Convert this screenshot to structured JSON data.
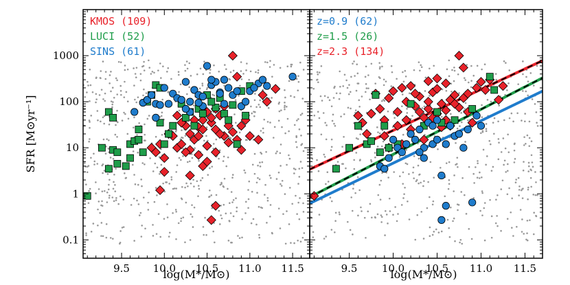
{
  "colors": {
    "kmos": "#e8222a",
    "luci": "#1f9d4a",
    "sins": "#1f7ccc",
    "background": "#999999"
  },
  "chart_data": [
    {
      "type": "scatter",
      "panel": "left",
      "xlabel": "log(M*/M⊙)",
      "ylabel": "SFR [M⊙yr⁻¹]",
      "xlim": [
        9.05,
        11.7
      ],
      "ylim": [
        0.04,
        10000
      ],
      "yscale": "log",
      "x_ticks": [
        "9.5",
        "10.0",
        "10.5",
        "11.0",
        "11.5"
      ],
      "y_ticks": [
        "0.1",
        "1",
        "10",
        "100",
        "1000"
      ],
      "legend": [
        {
          "label": "KMOS",
          "count": "(109)",
          "color": "#e8222a"
        },
        {
          "label": "LUCI",
          "count": "(52)",
          "color": "#1f9d4a"
        },
        {
          "label": "SINS",
          "count": "(61)",
          "color": "#1f7ccc"
        }
      ],
      "series": [
        {
          "name": "KMOS",
          "marker": "diamond",
          "color": "#e8222a",
          "points": [
            [
              9.85,
              10
            ],
            [
              9.9,
              8
            ],
            [
              9.95,
              12
            ],
            [
              10.0,
              6
            ],
            [
              10.05,
              20
            ],
            [
              10.1,
              18
            ],
            [
              10.15,
              10
            ],
            [
              10.2,
              12
            ],
            [
              10.25,
              30
            ],
            [
              10.3,
              9
            ],
            [
              10.35,
              15
            ],
            [
              10.4,
              28
            ],
            [
              10.45,
              40
            ],
            [
              10.5,
              60
            ],
            [
              10.55,
              35
            ],
            [
              10.6,
              25
            ],
            [
              10.65,
              50
            ],
            [
              10.7,
              18
            ],
            [
              10.75,
              13
            ],
            [
              10.8,
              22
            ],
            [
              10.85,
              15
            ],
            [
              10.9,
              30
            ],
            [
              10.95,
              40
            ],
            [
              11.0,
              18
            ],
            [
              11.1,
              15
            ],
            [
              11.15,
              140
            ],
            [
              11.2,
              100
            ],
            [
              11.3,
              190
            ],
            [
              10.8,
              1000
            ],
            [
              10.85,
              350
            ],
            [
              10.6,
              0.55
            ],
            [
              10.55,
              0.27
            ],
            [
              10.45,
              4
            ],
            [
              10.3,
              2.5
            ],
            [
              10.25,
              8
            ],
            [
              9.95,
              1.2
            ],
            [
              10.0,
              3.0
            ],
            [
              10.4,
              18
            ],
            [
              10.5,
              11
            ],
            [
              10.6,
              8
            ],
            [
              10.45,
              25
            ],
            [
              10.35,
              40
            ],
            [
              10.2,
              35
            ],
            [
              10.65,
              20
            ],
            [
              10.75,
              30
            ],
            [
              10.5,
              5
            ],
            [
              10.9,
              9
            ],
            [
              10.3,
              20
            ],
            [
              10.4,
              7
            ],
            [
              10.55,
              45
            ],
            [
              10.6,
              70
            ],
            [
              10.7,
              80
            ],
            [
              10.15,
              50
            ]
          ]
        },
        {
          "name": "LUCI",
          "marker": "square",
          "color": "#1f9d4a",
          "points": [
            [
              9.1,
              0.9
            ],
            [
              9.27,
              10
            ],
            [
              9.35,
              3.5
            ],
            [
              9.4,
              9
            ],
            [
              9.45,
              4.5
            ],
            [
              9.55,
              4.0
            ],
            [
              9.6,
              6
            ],
            [
              9.6,
              12
            ],
            [
              9.65,
              14
            ],
            [
              9.7,
              25
            ],
            [
              9.75,
              8
            ],
            [
              9.8,
              100
            ],
            [
              9.85,
              140
            ],
            [
              9.9,
              230
            ],
            [
              9.95,
              200
            ],
            [
              9.35,
              60
            ],
            [
              9.4,
              45
            ],
            [
              10.0,
              12
            ],
            [
              10.05,
              20
            ],
            [
              10.2,
              90
            ],
            [
              10.3,
              60
            ],
            [
              10.4,
              70
            ],
            [
              10.5,
              140
            ],
            [
              10.6,
              75
            ],
            [
              10.7,
              55
            ],
            [
              10.75,
              40
            ],
            [
              10.8,
              85
            ],
            [
              10.85,
              12
            ],
            [
              10.9,
              170
            ],
            [
              10.95,
              50
            ],
            [
              11.0,
              220
            ],
            [
              9.95,
              35
            ],
            [
              10.1,
              30
            ],
            [
              10.25,
              45
            ],
            [
              9.7,
              15
            ],
            [
              9.45,
              8
            ],
            [
              10.35,
              30
            ],
            [
              10.55,
              100
            ],
            [
              10.65,
              120
            ],
            [
              10.45,
              55
            ]
          ]
        },
        {
          "name": "SINS",
          "marker": "circle",
          "color": "#1f7ccc",
          "points": [
            [
              9.65,
              60
            ],
            [
              9.75,
              95
            ],
            [
              9.8,
              110
            ],
            [
              9.85,
              140
            ],
            [
              9.9,
              90
            ],
            [
              9.95,
              85
            ],
            [
              10.0,
              200
            ],
            [
              10.05,
              90
            ],
            [
              10.1,
              150
            ],
            [
              10.15,
              120
            ],
            [
              10.2,
              110
            ],
            [
              10.25,
              270
            ],
            [
              10.3,
              100
            ],
            [
              10.35,
              180
            ],
            [
              10.4,
              140
            ],
            [
              10.45,
              130
            ],
            [
              10.5,
              600
            ],
            [
              10.55,
              230
            ],
            [
              10.6,
              270
            ],
            [
              10.65,
              160
            ],
            [
              10.7,
              300
            ],
            [
              10.75,
              200
            ],
            [
              10.8,
              140
            ],
            [
              10.85,
              170
            ],
            [
              10.9,
              80
            ],
            [
              10.95,
              100
            ],
            [
              11.0,
              170
            ],
            [
              11.1,
              250
            ],
            [
              11.15,
              300
            ],
            [
              11.2,
              220
            ],
            [
              11.5,
              350
            ],
            [
              10.55,
              300
            ],
            [
              10.45,
              80
            ],
            [
              10.3,
              60
            ],
            [
              10.7,
              90
            ],
            [
              9.9,
              45
            ],
            [
              10.25,
              70
            ],
            [
              11.05,
              200
            ],
            [
              10.65,
              150
            ],
            [
              10.4,
              95
            ]
          ]
        },
        {
          "name": "background",
          "marker": "dot",
          "color": "#999999",
          "count": 700,
          "seed": 7,
          "xlim": [
            9.05,
            11.65
          ],
          "ylim": [
            0.08,
            800
          ]
        }
      ]
    },
    {
      "type": "scatter",
      "panel": "right",
      "xlabel": "log(M*/M⊙)",
      "xlim": [
        9.05,
        11.7
      ],
      "ylim": [
        0.04,
        10000
      ],
      "yscale": "log",
      "x_ticks": [
        "9.5",
        "10.0",
        "10.5",
        "11.0",
        "11.5"
      ],
      "legend": [
        {
          "label": "z=0.9",
          "count": "(62)",
          "color": "#1f7ccc"
        },
        {
          "label": "z=1.5",
          "count": "(26)",
          "color": "#1f9d4a"
        },
        {
          "label": "z=2.3",
          "count": "(134)",
          "color": "#e8222a"
        }
      ],
      "lines": [
        {
          "name": "z=2.3 relation",
          "color": "#e8222a",
          "dashed_overlay": true,
          "from": [
            9.05,
            3.4
          ],
          "to": [
            11.7,
            780
          ]
        },
        {
          "name": "z=1.5 relation",
          "color": "#1f9d4a",
          "dashed_overlay": true,
          "from": [
            9.05,
            0.85
          ],
          "to": [
            11.7,
            330
          ]
        },
        {
          "name": "z=0.9 relation",
          "color": "#1f7ccc",
          "dashed_overlay": false,
          "from": [
            9.05,
            0.62
          ],
          "to": [
            11.7,
            170
          ]
        }
      ],
      "series": [
        {
          "name": "z=2.3",
          "marker": "diamond",
          "color": "#e8222a",
          "points": [
            [
              9.1,
              0.9
            ],
            [
              9.6,
              50
            ],
            [
              9.65,
              35
            ],
            [
              9.7,
              20
            ],
            [
              9.75,
              55
            ],
            [
              9.8,
              150
            ],
            [
              9.85,
              70
            ],
            [
              9.9,
              40
            ],
            [
              9.95,
              120
            ],
            [
              10.0,
              170
            ],
            [
              10.05,
              60
            ],
            [
              10.1,
              200
            ],
            [
              10.15,
              100
            ],
            [
              10.2,
              220
            ],
            [
              10.25,
              80
            ],
            [
              10.3,
              130
            ],
            [
              10.35,
              45
            ],
            [
              10.4,
              70
            ],
            [
              10.45,
              160
            ],
            [
              10.5,
              190
            ],
            [
              10.55,
              90
            ],
            [
              10.6,
              40
            ],
            [
              10.65,
              110
            ],
            [
              10.7,
              140
            ],
            [
              10.75,
              75
            ],
            [
              10.8,
              120
            ],
            [
              10.85,
              60
            ],
            [
              10.9,
              35
            ],
            [
              10.95,
              200
            ],
            [
              11.0,
              270
            ],
            [
              11.1,
              300
            ],
            [
              11.2,
              110
            ],
            [
              11.25,
              220
            ],
            [
              10.75,
              1000
            ],
            [
              10.8,
              550
            ],
            [
              10.35,
              15
            ],
            [
              10.2,
              25
            ],
            [
              10.1,
              12
            ],
            [
              10.05,
              30
            ],
            [
              10.5,
              55
            ],
            [
              10.55,
              28
            ],
            [
              10.6,
              65
            ],
            [
              10.65,
              30
            ],
            [
              10.4,
              100
            ],
            [
              10.3,
              60
            ],
            [
              10.25,
              150
            ],
            [
              10.45,
              45
            ],
            [
              10.15,
              40
            ],
            [
              9.95,
              10
            ],
            [
              9.9,
              18
            ],
            [
              10.7,
              90
            ],
            [
              10.85,
              150
            ],
            [
              11.05,
              180
            ],
            [
              10.4,
              280
            ],
            [
              10.5,
              320
            ],
            [
              10.6,
              250
            ]
          ]
        },
        {
          "name": "z=1.5",
          "marker": "square",
          "color": "#1f9d4a",
          "points": [
            [
              9.35,
              3.5
            ],
            [
              9.5,
              10
            ],
            [
              9.6,
              30
            ],
            [
              9.7,
              12
            ],
            [
              9.75,
              14
            ],
            [
              9.8,
              140
            ],
            [
              9.85,
              8
            ],
            [
              9.9,
              30
            ],
            [
              9.95,
              10
            ],
            [
              10.2,
              90
            ],
            [
              10.35,
              30
            ],
            [
              10.5,
              60
            ],
            [
              10.7,
              40
            ],
            [
              10.9,
              70
            ],
            [
              11.1,
              350
            ],
            [
              11.15,
              180
            ],
            [
              10.05,
              12
            ],
            [
              10.55,
              35
            ]
          ]
        },
        {
          "name": "z=0.9",
          "marker": "circle",
          "color": "#1f7ccc",
          "points": [
            [
              9.85,
              4
            ],
            [
              9.9,
              3.5
            ],
            [
              9.95,
              6
            ],
            [
              10.0,
              15
            ],
            [
              10.05,
              10
            ],
            [
              10.1,
              8
            ],
            [
              10.15,
              12
            ],
            [
              10.2,
              20
            ],
            [
              10.25,
              15
            ],
            [
              10.3,
              25
            ],
            [
              10.35,
              10
            ],
            [
              10.4,
              35
            ],
            [
              10.45,
              30
            ],
            [
              10.5,
              40
            ],
            [
              10.55,
              2.5
            ],
            [
              10.6,
              0.55
            ],
            [
              10.55,
              0.27
            ],
            [
              10.65,
              30
            ],
            [
              10.7,
              18
            ],
            [
              10.75,
              20
            ],
            [
              10.8,
              10
            ],
            [
              10.85,
              25
            ],
            [
              10.9,
              0.65
            ],
            [
              10.95,
              50
            ],
            [
              11.0,
              30
            ],
            [
              10.45,
              12
            ],
            [
              10.35,
              6
            ],
            [
              10.3,
              8
            ],
            [
              10.5,
              15
            ],
            [
              10.6,
              12
            ]
          ]
        },
        {
          "name": "background",
          "marker": "dot",
          "color": "#999999",
          "count": 600,
          "seed": 11,
          "xlim": [
            9.05,
            11.65
          ],
          "ylim": [
            0.08,
            800
          ]
        }
      ]
    }
  ]
}
